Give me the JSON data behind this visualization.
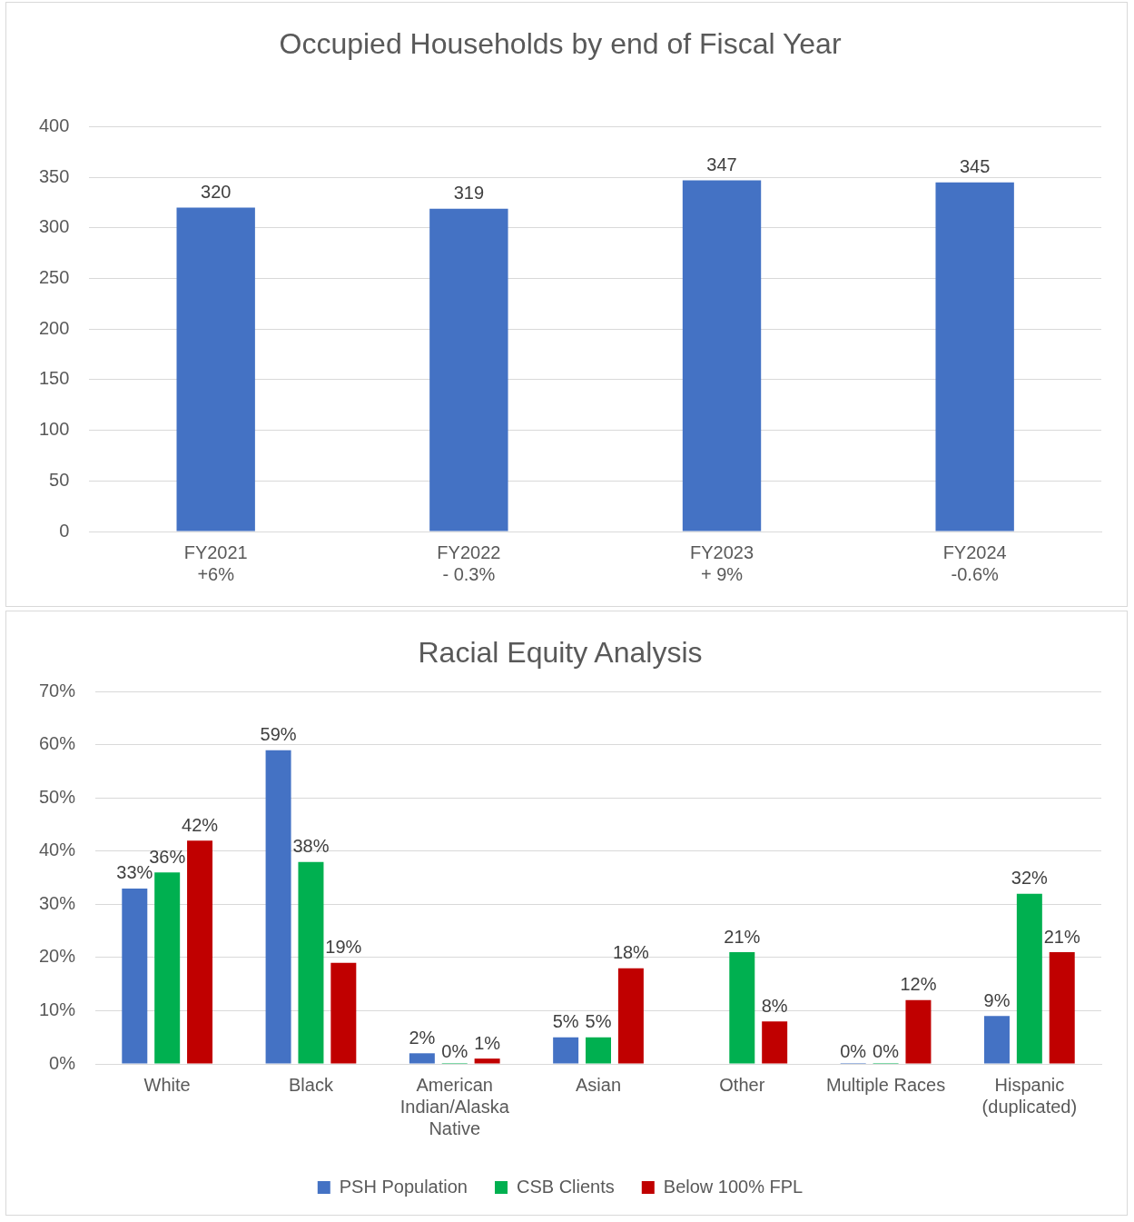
{
  "chart_data": [
    {
      "type": "bar",
      "title": "Occupied Households by end of Fiscal Year",
      "categories": [
        "FY2021\n+6%",
        "FY2022\n- 0.3%",
        "FY2023\n+ 9%",
        "FY2024\n-0.6%"
      ],
      "values": [
        320,
        319,
        347,
        345
      ],
      "color": "#4472c4",
      "ylim": [
        0,
        400
      ],
      "yticks": [
        0,
        50,
        100,
        150,
        200,
        250,
        300,
        350,
        400
      ],
      "grid": "y",
      "data_labels": true,
      "legend": false
    },
    {
      "type": "bar",
      "title": "Racial Equity Analysis",
      "categories": [
        "White",
        "Black",
        "American Indian/Alaska Native",
        "Asian",
        "Other",
        "Multiple Races",
        "Hispanic (duplicated)"
      ],
      "series": [
        {
          "name": "PSH Population",
          "color": "#4472c4",
          "values": [
            33,
            59,
            2,
            5,
            null,
            0,
            9
          ],
          "value_labels": [
            "33%",
            "59%",
            "2%",
            "5%",
            null,
            "0%",
            "9%"
          ]
        },
        {
          "name": "CSB Clients",
          "color": "#00b050",
          "values": [
            36,
            38,
            0,
            5,
            21,
            0,
            32
          ],
          "value_labels": [
            "36%",
            "38%",
            "0%",
            "5%",
            "21%",
            "0%",
            "32%"
          ]
        },
        {
          "name": "Below 100% FPL",
          "color": "#c00000",
          "values": [
            42,
            19,
            1,
            18,
            8,
            12,
            21
          ],
          "value_labels": [
            "42%",
            "19%",
            "1%",
            "18%",
            "8%",
            "12%",
            "21%"
          ]
        }
      ],
      "ylim": [
        0,
        70
      ],
      "yticks": [
        {
          "value": 0,
          "label": "0%"
        },
        {
          "value": 10,
          "label": "10%"
        },
        {
          "value": 20,
          "label": "20%"
        },
        {
          "value": 30,
          "label": "30%"
        },
        {
          "value": 40,
          "label": "40%"
        },
        {
          "value": 50,
          "label": "50%"
        },
        {
          "value": 60,
          "label": "60%"
        },
        {
          "value": 70,
          "label": "70%"
        }
      ],
      "grid": "y",
      "legend": "bottom"
    }
  ]
}
